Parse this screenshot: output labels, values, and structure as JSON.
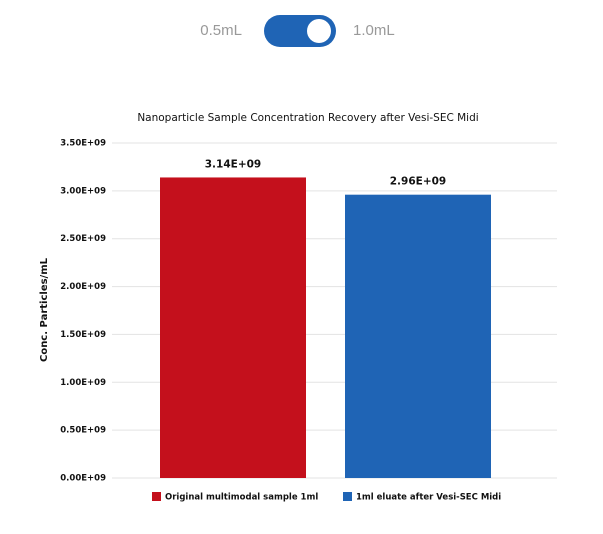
{
  "toggle": {
    "left": "0.5mL",
    "right": "1.0mL",
    "on": true
  },
  "chart_data": {
    "type": "bar",
    "title": "Nanoparticle Sample Concentration Recovery after Vesi-SEC Midi",
    "y_label": "Conc. Particles/mL",
    "categories": [
      null
    ],
    "series": [
      {
        "name": "Original multimodal sample 1ml",
        "color": "#c4101c",
        "values": [
          3140000000
        ],
        "value_labels": [
          "3.14E+09"
        ]
      },
      {
        "name": "1ml eluate after Vesi-SEC Midi",
        "color": "#1f64b5",
        "values": [
          2960000000
        ],
        "value_labels": [
          "2.96E+09"
        ]
      }
    ],
    "ylim": [
      0,
      3500000000
    ],
    "yticks": [
      {
        "value": 0,
        "label": "0.00E+09"
      },
      {
        "value": 500000000,
        "label": "0.50E+09"
      },
      {
        "value": 1000000000,
        "label": "1.00E+09"
      },
      {
        "value": 1500000000,
        "label": "1.50E+09"
      },
      {
        "value": 2000000000,
        "label": "2.00E+09"
      },
      {
        "value": 2500000000,
        "label": "2.50E+09"
      },
      {
        "value": 3000000000,
        "label": "3.00E+09"
      },
      {
        "value": 3500000000,
        "label": "3.50E+09"
      }
    ],
    "grid": true,
    "legend": "bottom"
  }
}
